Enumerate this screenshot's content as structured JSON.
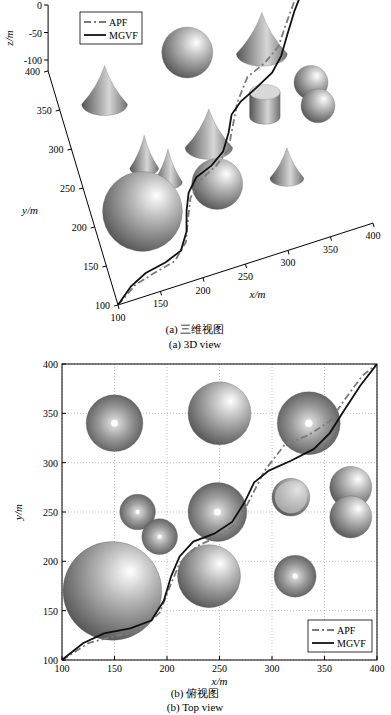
{
  "chart_data": [
    {
      "type": "line3d",
      "title": "(a) 三维视图",
      "subtitle": "(a) 3D view",
      "xlabel": "x/m",
      "ylabel": "y/m",
      "zlabel": "z/m",
      "xlim": [
        100,
        400
      ],
      "ylim": [
        100,
        400
      ],
      "zlim": [
        -120,
        0
      ],
      "xticks": [
        100,
        150,
        200,
        250,
        300,
        350,
        400
      ],
      "yticks": [
        100,
        150,
        200,
        250,
        300,
        350,
        400
      ],
      "zticks": [
        -100,
        -50,
        0
      ],
      "legend": "upper left",
      "series": [
        {
          "name": "APF",
          "color": "#7a7a7a",
          "line_style": "dashdot",
          "x": [
            100,
            125,
            150,
            175,
            193,
            203,
            212,
            228,
            250,
            268,
            280,
            293,
            312,
            335,
            355,
            370,
            386,
            400
          ],
          "values": [
            100,
            117,
            124,
            130,
            148,
            175,
            198,
            215,
            226,
            240,
            265,
            292,
            318,
            328,
            342,
            365,
            388,
            400
          ]
        },
        {
          "name": "MGVF",
          "color": "#111111",
          "line_style": "solid",
          "x": [
            100,
            120,
            140,
            165,
            185,
            197,
            204,
            212,
            225,
            245,
            262,
            274,
            283,
            297,
            318,
            340,
            355,
            368,
            384,
            400
          ],
          "values": [
            100,
            117,
            127,
            132,
            140,
            160,
            185,
            205,
            220,
            228,
            240,
            260,
            280,
            292,
            302,
            314,
            330,
            352,
            378,
            400
          ]
        }
      ],
      "obstacles": [
        {
          "shape": "cone",
          "x": 150,
          "y": 340,
          "r": 27,
          "h": 70
        },
        {
          "shape": "sphere",
          "x": 250,
          "y": 350,
          "r": 30,
          "h": 60
        },
        {
          "shape": "cone",
          "x": 335,
          "y": 340,
          "r": 30,
          "h": 75
        },
        {
          "shape": "cone",
          "x": 172,
          "y": 250,
          "r": 17,
          "h": 60
        },
        {
          "shape": "cone",
          "x": 193,
          "y": 225,
          "r": 17,
          "h": 60
        },
        {
          "shape": "cone",
          "x": 248,
          "y": 250,
          "r": 28,
          "h": 70
        },
        {
          "shape": "cylinder",
          "x": 318,
          "y": 265,
          "r": 18,
          "h": 45
        },
        {
          "shape": "sphere",
          "x": 375,
          "y": 275,
          "r": 20,
          "h": 40
        },
        {
          "shape": "sphere",
          "x": 375,
          "y": 245,
          "r": 20,
          "h": 40
        },
        {
          "shape": "sphere",
          "x": 148,
          "y": 170,
          "r": 47,
          "h": 94
        },
        {
          "shape": "sphere",
          "x": 240,
          "y": 185,
          "r": 30,
          "h": 60
        },
        {
          "shape": "cone",
          "x": 322,
          "y": 185,
          "r": 20,
          "h": 55
        }
      ]
    },
    {
      "type": "line",
      "title": "(b) 俯视图",
      "subtitle": "(b) Top view",
      "xlabel": "x/m",
      "ylabel": "y/m",
      "xlim": [
        100,
        400
      ],
      "ylim": [
        100,
        400
      ],
      "xticks": [
        100,
        150,
        200,
        250,
        300,
        350,
        400
      ],
      "yticks": [
        100,
        150,
        200,
        250,
        300,
        350,
        400
      ],
      "grid": true,
      "legend": "lower right",
      "series": [
        {
          "name": "APF",
          "color": "#7a7a7a",
          "line_style": "dashdot",
          "x": [
            100,
            125,
            150,
            175,
            193,
            203,
            212,
            228,
            250,
            268,
            280,
            293,
            312,
            335,
            355,
            370,
            386,
            400
          ],
          "values": [
            100,
            117,
            124,
            130,
            148,
            175,
            198,
            215,
            226,
            240,
            265,
            292,
            318,
            328,
            342,
            365,
            388,
            400
          ]
        },
        {
          "name": "MGVF",
          "color": "#111111",
          "line_style": "solid",
          "x": [
            100,
            120,
            140,
            165,
            185,
            197,
            204,
            212,
            225,
            245,
            262,
            274,
            283,
            297,
            318,
            340,
            355,
            368,
            384,
            400
          ],
          "values": [
            100,
            117,
            127,
            132,
            140,
            160,
            185,
            205,
            220,
            228,
            240,
            260,
            280,
            292,
            302,
            314,
            330,
            352,
            378,
            400
          ]
        }
      ],
      "obstacles": [
        {
          "shape": "cone",
          "x": 150,
          "y": 340,
          "r": 27
        },
        {
          "shape": "sphere",
          "x": 250,
          "y": 350,
          "r": 30
        },
        {
          "shape": "cone",
          "x": 335,
          "y": 340,
          "r": 30
        },
        {
          "shape": "cone",
          "x": 172,
          "y": 250,
          "r": 17
        },
        {
          "shape": "cone",
          "x": 193,
          "y": 225,
          "r": 17
        },
        {
          "shape": "cone",
          "x": 248,
          "y": 250,
          "r": 28
        },
        {
          "shape": "cylinder",
          "x": 318,
          "y": 265,
          "r": 18
        },
        {
          "shape": "sphere",
          "x": 375,
          "y": 275,
          "r": 20
        },
        {
          "shape": "sphere",
          "x": 375,
          "y": 245,
          "r": 20
        },
        {
          "shape": "sphere",
          "x": 148,
          "y": 170,
          "r": 47
        },
        {
          "shape": "sphere",
          "x": 240,
          "y": 185,
          "r": 30
        },
        {
          "shape": "cone",
          "x": 322,
          "y": 185,
          "r": 20
        }
      ]
    }
  ]
}
